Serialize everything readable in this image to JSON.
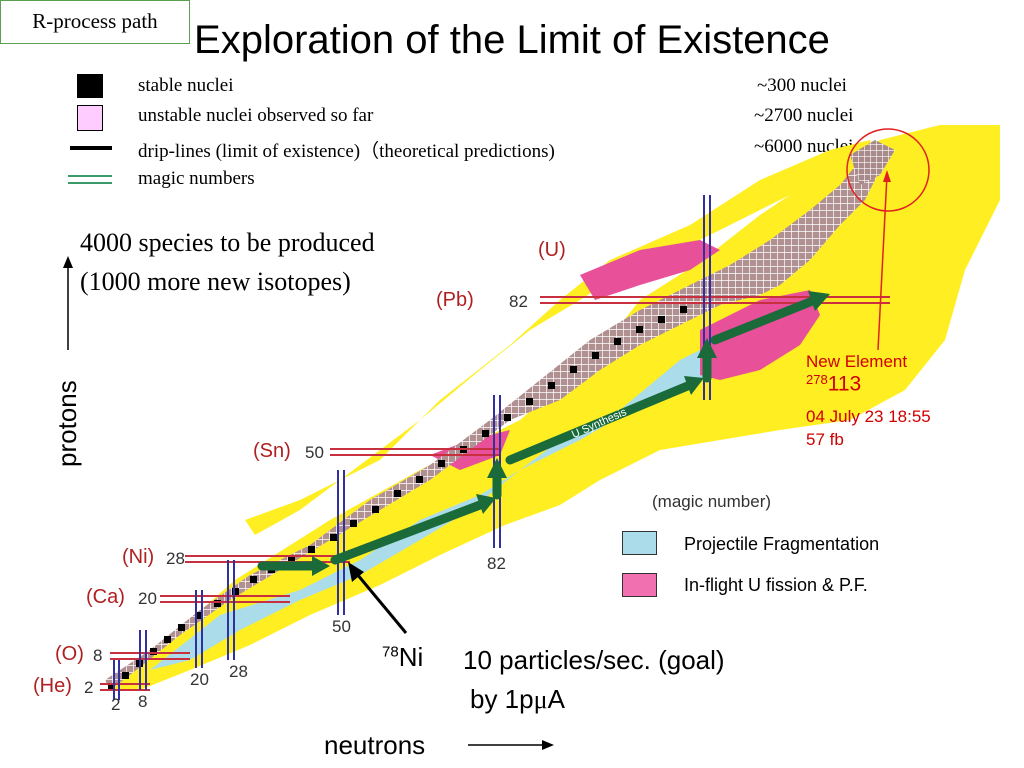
{
  "title": "Exploration of the Limit of Existence",
  "legend": [
    {
      "label": "stable nuclei",
      "count": "~300 nuclei",
      "symbol": "black-square",
      "color": "#000000"
    },
    {
      "label": "unstable nuclei observed so far",
      "count": "~2700 nuclei",
      "symbol": "pink-square",
      "color": "#ffccff"
    },
    {
      "label": "drip-lines (limit of existence)（theoretical predictions)",
      "count": "~6000 nuclei",
      "symbol": "black-line",
      "color": "#000000"
    },
    {
      "label": "magic numbers",
      "count": "",
      "symbol": "double-green-line",
      "color": "#3a9a6a"
    }
  ],
  "notes": {
    "species_line1": "4000 species to be produced",
    "species_line2": "(1000 more new isotopes)"
  },
  "axes": {
    "y_label": "protons",
    "x_label": "neutrons"
  },
  "proton_magic": [
    {
      "element": "(U)",
      "value": ""
    },
    {
      "element": "(Pb)",
      "value": "82"
    },
    {
      "element": "(Sn)",
      "value": "50"
    },
    {
      "element": "(Ni)",
      "value": "28"
    },
    {
      "element": "(Ca)",
      "value": "20"
    },
    {
      "element": "(O)",
      "value": "8"
    },
    {
      "element": "(He)",
      "value": "2"
    }
  ],
  "neutron_magic": [
    "2",
    "8",
    "20",
    "28",
    "50",
    "82"
  ],
  "magic_number_caption": "(magic number)",
  "u_synthesis_label": "U Synthesis",
  "rprocess_label": "R-process path",
  "new_element": {
    "line1": "New Element",
    "mass": "278",
    "z": "113",
    "date": "04 July 23 18:55",
    "cross_section": "57 fb"
  },
  "ni78": {
    "mass": "78",
    "symbol": "Ni"
  },
  "rate": {
    "line1": "10 particles/sec. (goal)",
    "line2_prefix": "by 1p",
    "line2_mu": "μ",
    "line2_suffix": "A"
  },
  "key": [
    {
      "label": "Projectile Fragmentation",
      "color": "#aadcea"
    },
    {
      "label": "In-flight U fission & P.F.",
      "color": "#f070b0"
    }
  ],
  "colors": {
    "drip_yellow": "#ffee22",
    "unstable_region": "#b09090",
    "fragmentation_blue": "#aadcea",
    "fission_pink": "#e8509a",
    "arrow_green": "#1a6a3a",
    "magic_red": "#c83040"
  }
}
